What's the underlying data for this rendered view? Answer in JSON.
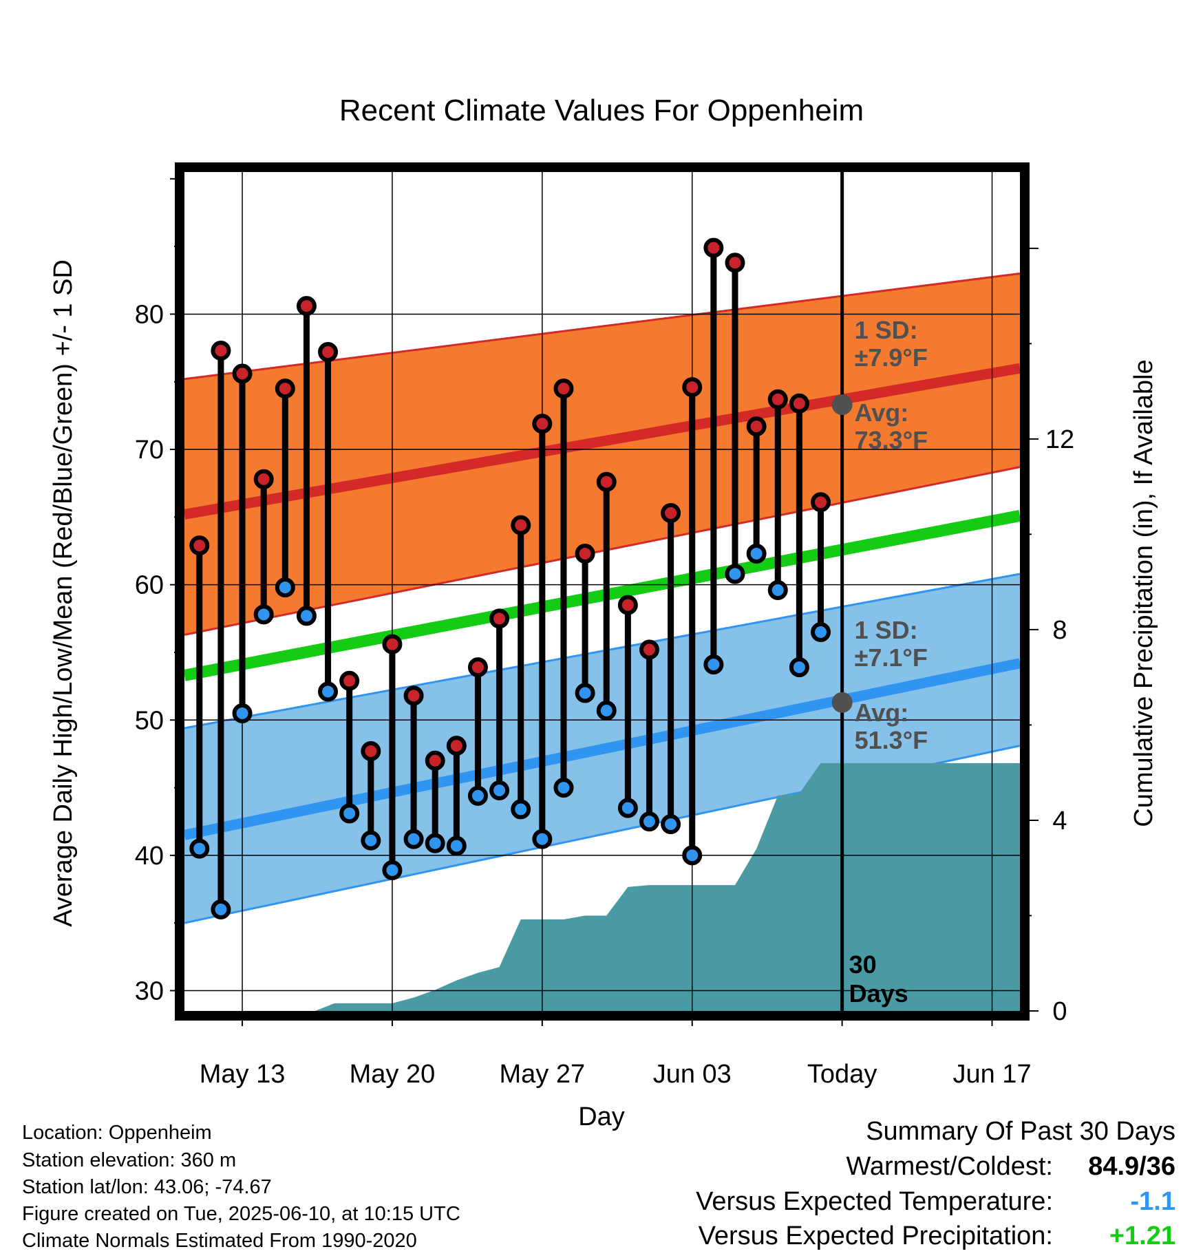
{
  "chart_data": {
    "type": "line",
    "title": "Recent Climate Values For Oppenheim",
    "xlabel": "Day",
    "ylabel": "Average Daily High/Low/Mean (Red/Blue/Green) +/- 1 SD",
    "y2label": "Cumulative Precipitation (in), If Available",
    "ylim": [
      28.5,
      90.5
    ],
    "y2lim": [
      0,
      17.6
    ],
    "yticks": [
      "30",
      "40",
      "50",
      "60",
      "70",
      "80"
    ],
    "y2ticks": [
      "0",
      "4",
      "8",
      "12"
    ],
    "xlim": [
      10.3,
      49.3
    ],
    "xticks": [
      {
        "label": "May 13",
        "x": 13
      },
      {
        "label": "May 20",
        "x": 20
      },
      {
        "label": "May 27",
        "x": 27
      },
      {
        "label": "Jun 03",
        "x": 34
      },
      {
        "label": "Today",
        "x": 41
      },
      {
        "label": "Jun 17",
        "x": 48
      }
    ],
    "grid": true,
    "today_x": 41,
    "days": [
      11,
      12,
      13,
      14,
      15,
      16,
      17,
      18,
      19,
      20,
      21,
      22,
      23,
      24,
      25,
      26,
      27,
      28,
      29,
      30,
      31,
      32,
      33,
      34,
      35,
      36,
      37,
      38,
      39,
      40
    ],
    "daily_high": [
      62.9,
      77.3,
      75.6,
      67.8,
      74.5,
      80.6,
      77.2,
      52.9,
      47.7,
      55.6,
      51.8,
      47.0,
      48.1,
      53.9,
      57.5,
      64.4,
      71.9,
      74.5,
      62.3,
      67.6,
      58.5,
      55.2,
      65.3,
      74.6,
      84.9,
      83.8,
      71.7,
      73.7,
      73.4,
      66.1
    ],
    "daily_low": [
      40.5,
      36.0,
      50.5,
      57.8,
      59.8,
      57.7,
      52.1,
      43.1,
      41.1,
      38.9,
      41.2,
      40.9,
      40.7,
      44.4,
      44.8,
      43.4,
      41.2,
      45.0,
      52.0,
      50.7,
      43.5,
      42.5,
      42.3,
      40.0,
      54.1,
      60.8,
      62.3,
      59.6,
      53.9,
      56.5
    ],
    "normal_high": {
      "start": 65.2,
      "end": 76.0
    },
    "normal_high_band": {
      "lower_start": 56.3,
      "lower_end": 68.7,
      "upper_start": 75.2,
      "upper_end": 83.0
    },
    "normal_low": {
      "start": 41.5,
      "end": 54.2
    },
    "normal_low_band": {
      "lower_start": 35.0,
      "lower_end": 48.1,
      "upper_start": 49.4,
      "upper_end": 60.8
    },
    "normal_mean": {
      "start": 53.3,
      "end": 65.1
    },
    "precip_cumulative": [
      [
        10.3,
        0
      ],
      [
        14.3,
        0
      ],
      [
        16.4,
        0
      ],
      [
        17.3,
        0.16
      ],
      [
        19.3,
        0.16
      ],
      [
        20,
        0.16
      ],
      [
        21,
        0.28
      ],
      [
        22,
        0.44
      ],
      [
        23,
        0.64
      ],
      [
        24,
        0.8
      ],
      [
        25,
        0.92
      ],
      [
        26,
        1.92
      ],
      [
        27,
        1.92
      ],
      [
        28,
        1.92
      ],
      [
        29,
        2.0
      ],
      [
        30,
        2.0
      ],
      [
        31,
        2.6
      ],
      [
        32,
        2.64
      ],
      [
        33,
        2.64
      ],
      [
        34,
        2.64
      ],
      [
        35,
        2.64
      ],
      [
        36,
        2.64
      ],
      [
        37,
        3.4
      ],
      [
        38,
        4.52
      ],
      [
        39,
        4.56
      ],
      [
        40,
        5.2
      ],
      [
        41,
        5.2
      ],
      [
        49.3,
        5.2
      ]
    ],
    "annotations": {
      "high_sd_label": "1 SD:",
      "high_sd_value": "±7.9°F",
      "high_avg_label": "Avg:",
      "high_avg_value": "73.3°F",
      "low_sd_label": "1 SD:",
      "low_sd_value": "±7.1°F",
      "low_avg_label": "Avg:",
      "low_avg_value": "51.3°F",
      "high_avg_marker": 73.3,
      "low_avg_marker": 51.3,
      "days_line1": "30",
      "days_line2": "Days"
    },
    "colors": {
      "high_band": "#f47a2f",
      "high_line": "#d42a27",
      "low_band": "#85c1e8",
      "low_line": "#2f95f0",
      "low_band_edge": "#2f95f0",
      "mean_line": "#13cc13",
      "precip": "#4a9aa3",
      "high_marker": "#c8232a",
      "low_marker": "#2f95f0",
      "avg_marker": "#505050"
    }
  },
  "info": {
    "location": "Location: Oppenheim",
    "elevation": "Station elevation: 360 m",
    "latlon": "Station lat/lon: 43.06; -74.67",
    "created": "Figure created on Tue, 2025-06-10, at 10:15 UTC",
    "normals": "Climate Normals Estimated From 1990-2020"
  },
  "summary": {
    "title": "Summary Of Past 30 Days",
    "warmest_label": "Warmest/Coldest:",
    "warmest_value": "84.9/36",
    "temp_label": "Versus Expected Temperature:",
    "temp_value": "-1.1",
    "temp_color": "#2f95f0",
    "precip_label": "Versus Expected Precipitation:",
    "precip_value": "+1.21",
    "precip_color": "#13cc13"
  }
}
